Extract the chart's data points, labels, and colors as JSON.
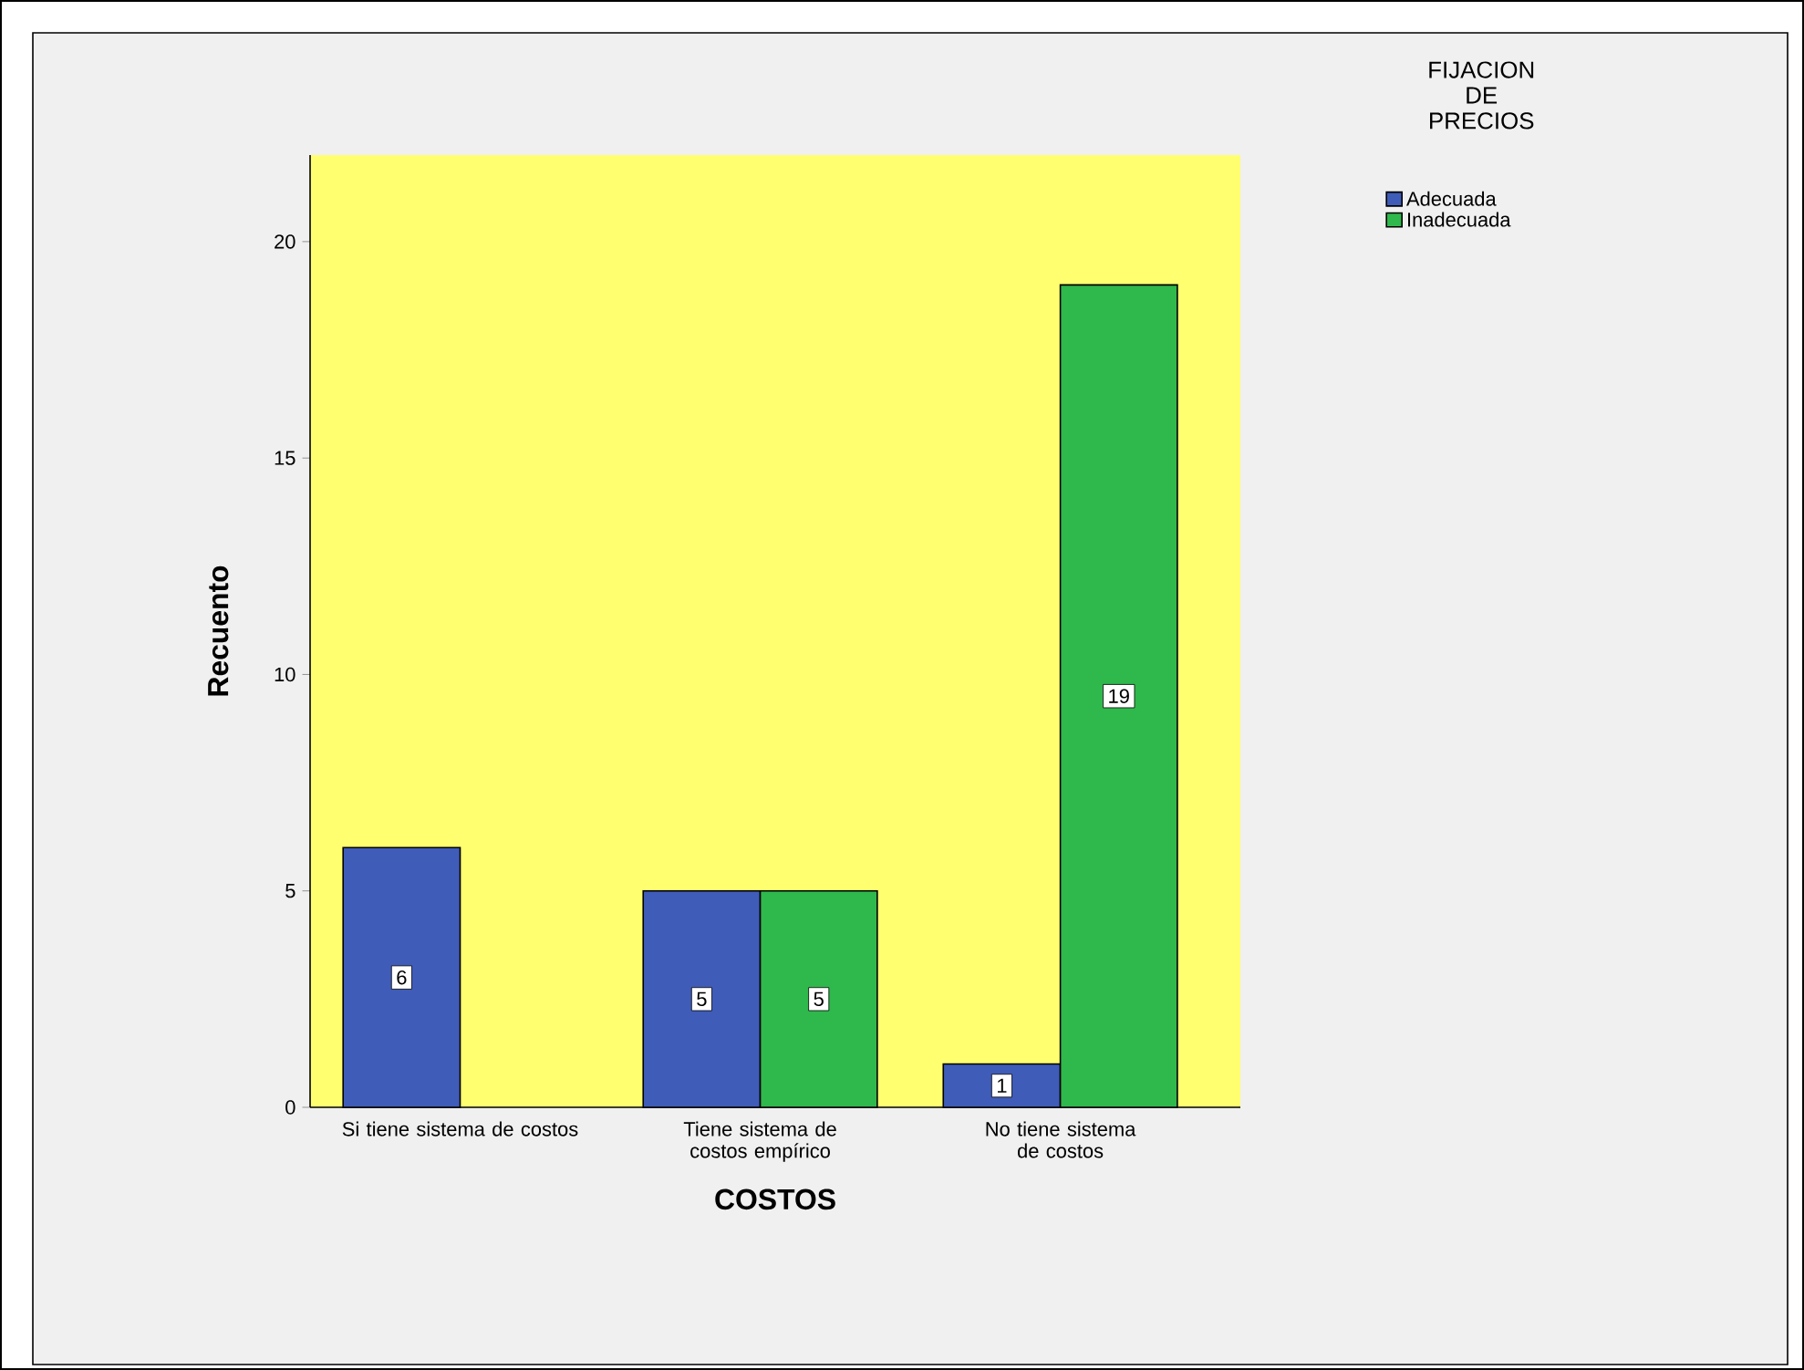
{
  "chart_data": {
    "type": "bar",
    "xlabel": "COSTOS",
    "ylabel": "Recuento",
    "legend_title": "FIJACION DE PRECIOS",
    "legend": "top right",
    "data_labels": true,
    "categories": [
      "Si tiene sistema de costos",
      "Tiene sistema de costos empírico",
      "No tiene sistema de costos"
    ],
    "series": [
      {
        "name": "Adecuada",
        "color": "#3f5cb8",
        "values": [
          6,
          5,
          1
        ]
      },
      {
        "name": "Inadecuada",
        "color": "#2fb84c",
        "values": [
          null,
          5,
          19
        ]
      }
    ],
    "ylim": [
      0,
      22
    ],
    "yticks": [
      0,
      5,
      10,
      15,
      20
    ]
  }
}
